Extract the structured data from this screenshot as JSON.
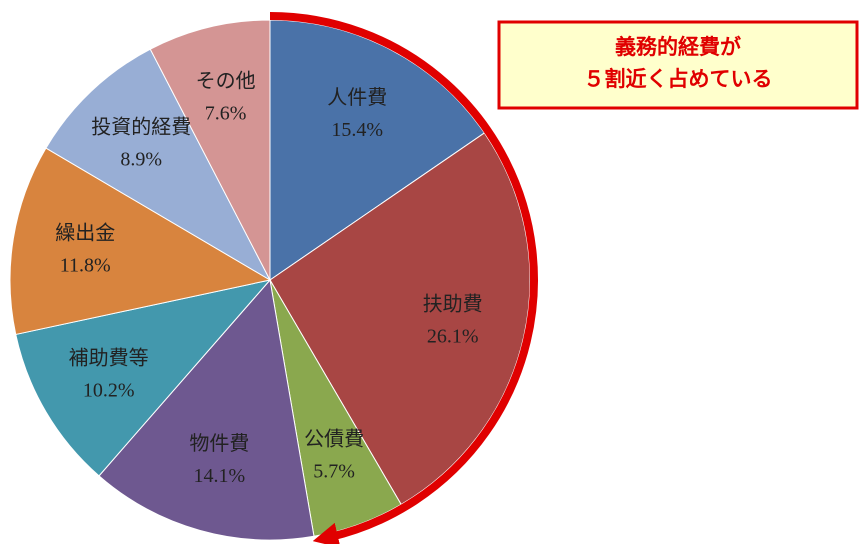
{
  "chart_data": {
    "type": "pie",
    "categories": [
      "人件費",
      "扶助費",
      "公債費",
      "物件費",
      "補助費等",
      "繰出金",
      "投資的経費",
      "その他"
    ],
    "values": [
      15.4,
      26.1,
      5.7,
      14.1,
      10.2,
      11.8,
      8.9,
      7.6
    ],
    "value_labels": [
      "15.4%",
      "26.1%",
      "5.7%",
      "14.1%",
      "10.2%",
      "11.8%",
      "8.9%",
      "7.6%"
    ],
    "colors": [
      "#4a72a8",
      "#a84644",
      "#8aa84e",
      "#6e5890",
      "#4398ad",
      "#d8843e",
      "#98aed5",
      "#d49594"
    ],
    "annotations": [
      "義務的経費が",
      "５割近く占めている"
    ]
  }
}
